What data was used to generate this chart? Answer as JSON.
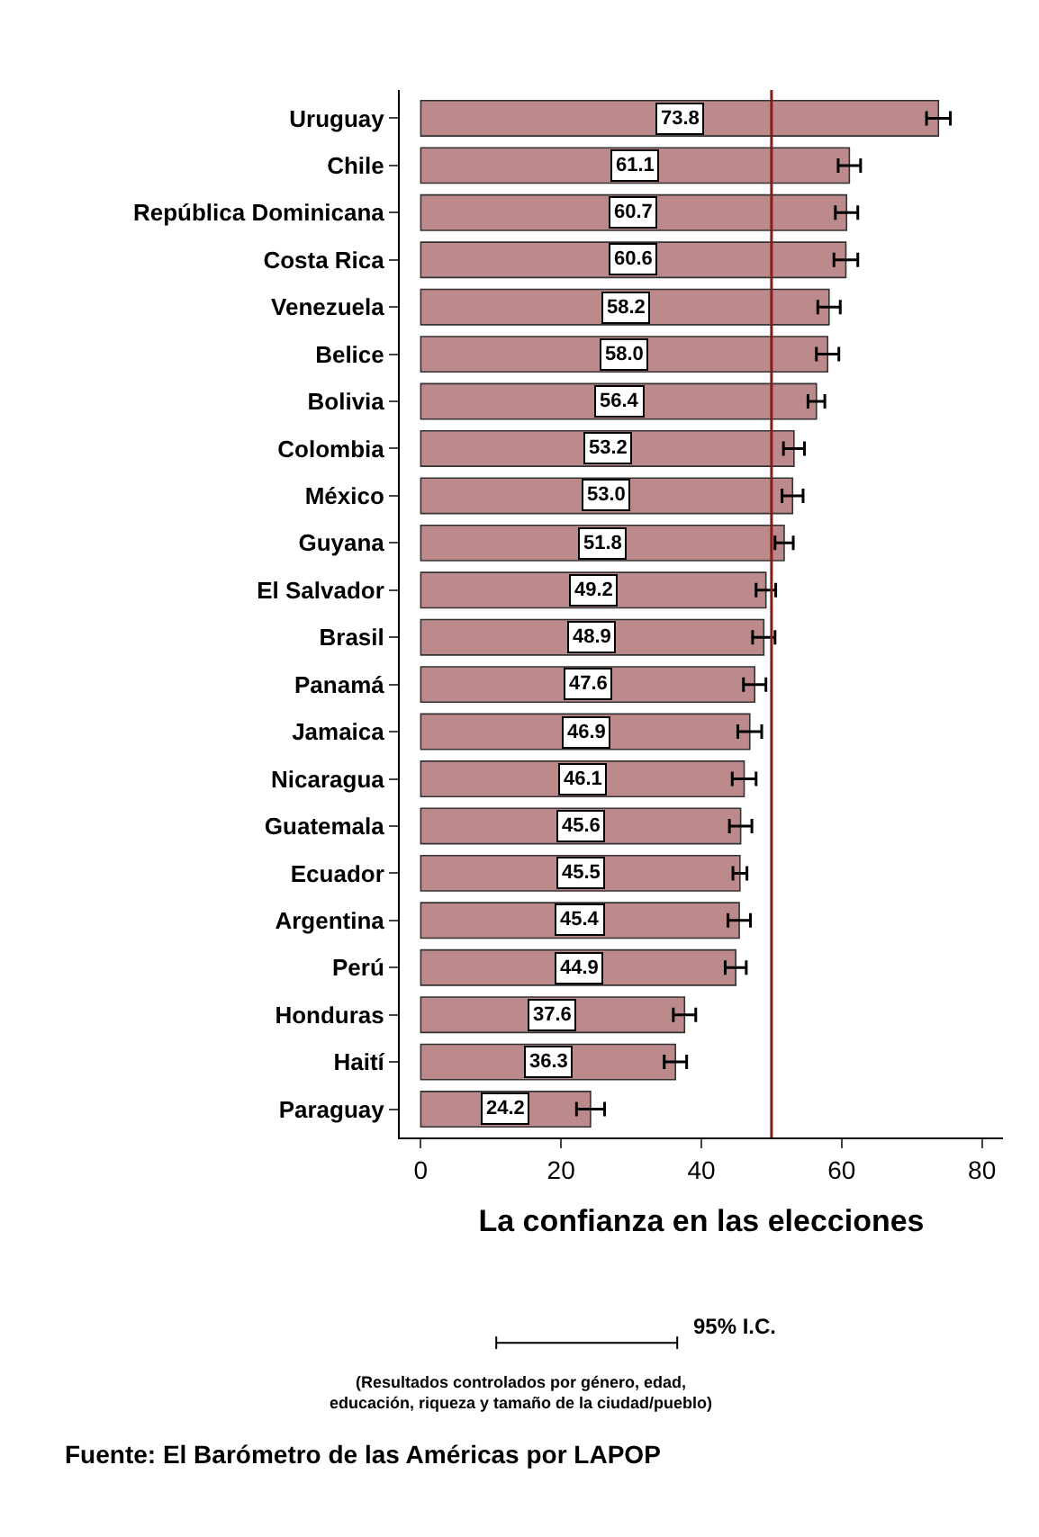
{
  "chart_data": {
    "type": "bar",
    "orientation": "horizontal",
    "categories": [
      "Uruguay",
      "Chile",
      "República Dominicana",
      "Costa Rica",
      "Venezuela",
      "Belice",
      "Bolivia",
      "Colombia",
      "México",
      "Guyana",
      "El Salvador",
      "Brasil",
      "Panamá",
      "Jamaica",
      "Nicaragua",
      "Guatemala",
      "Ecuador",
      "Argentina",
      "Perú",
      "Honduras",
      "Haití",
      "Paraguay"
    ],
    "values": [
      73.8,
      61.1,
      60.7,
      60.6,
      58.2,
      58.0,
      56.4,
      53.2,
      53.0,
      51.8,
      49.2,
      48.9,
      47.6,
      46.9,
      46.1,
      45.6,
      45.5,
      45.4,
      44.9,
      37.6,
      36.3,
      24.2
    ],
    "errors": [
      1.7,
      1.6,
      1.6,
      1.7,
      1.6,
      1.6,
      1.2,
      1.5,
      1.5,
      1.3,
      1.4,
      1.6,
      1.6,
      1.7,
      1.7,
      1.6,
      1.0,
      1.6,
      1.5,
      1.6,
      1.6,
      2.0
    ],
    "color": "#bc8a8a",
    "value_labels": [
      "73.8",
      "61.1",
      "60.7",
      "60.6",
      "58.2",
      "58.0",
      "56.4",
      "53.2",
      "53.0",
      "51.8",
      "49.2",
      "48.9",
      "47.6",
      "46.9",
      "46.1",
      "45.6",
      "45.5",
      "45.4",
      "44.9",
      "37.6",
      "36.3",
      "24.2"
    ],
    "xlim": [
      -3,
      83
    ],
    "xticks": [
      0,
      20,
      40,
      60,
      80
    ],
    "xlabel": "La confianza en las elecciones",
    "ref_lines": [
      {
        "axis": "x",
        "value": 50,
        "label": null,
        "color": "#8b1a1a"
      }
    ],
    "data_labels": true,
    "annotations": [
      "95% I.C.",
      "(Resultados controlados por género, edad,\neducación, riqueza y tamaño de la ciudad/pueblo)",
      "Fuente: El Barómetro de las Américas por LAPOP"
    ]
  }
}
